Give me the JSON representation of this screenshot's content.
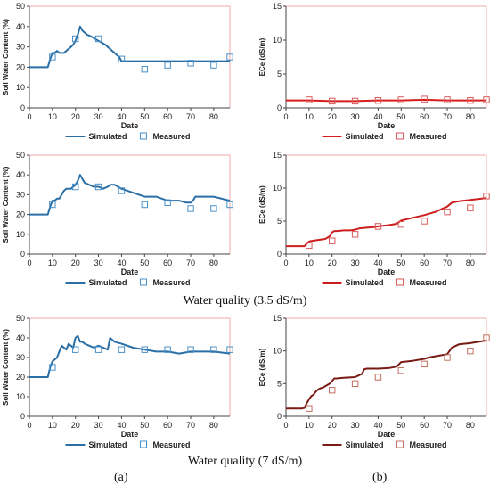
{
  "captions": {
    "row2": "Water quality (3.5 dS/m)",
    "row3": "Water quality (7 dS/m)",
    "panel_a": "(a)",
    "panel_b": "(b)"
  },
  "chart_data": [
    {
      "type": "line",
      "xlabel": "Date",
      "ylabel": "Soil Water Content (%)",
      "xlim": [
        0,
        87
      ],
      "ylim": [
        0,
        50
      ],
      "xticks": [
        "0",
        "10",
        "20",
        "30",
        "40",
        "50",
        "60",
        "70",
        "80"
      ],
      "yticks": [
        "0",
        "10",
        "20",
        "30",
        "40",
        "50"
      ],
      "grid": false,
      "legend": "bottom",
      "series": [
        {
          "name": "Simulated",
          "kind": "line",
          "color": "#2a6fa6",
          "x": [
            0,
            8,
            9,
            10,
            11,
            12,
            13,
            15,
            16,
            17,
            18,
            19,
            20,
            21,
            22,
            23,
            24,
            25,
            27,
            30,
            33,
            36,
            38,
            39,
            40,
            50,
            60,
            70,
            80,
            87
          ],
          "y": [
            20,
            20,
            24,
            27,
            27,
            28,
            27,
            27,
            28,
            29,
            30,
            31,
            33,
            36,
            40,
            38,
            37,
            36,
            35,
            33,
            31,
            28,
            26,
            25,
            23,
            23,
            23,
            23,
            23,
            23
          ]
        },
        {
          "name": "Measured",
          "kind": "marker",
          "color": "#4a90c8",
          "x": [
            10,
            20,
            30,
            40,
            50,
            60,
            70,
            80,
            87
          ],
          "y": [
            25,
            34,
            34,
            24,
            19,
            21,
            22,
            21,
            25
          ]
        }
      ]
    },
    {
      "type": "line",
      "xlabel": "Date",
      "ylabel": "ECe (dS/m)",
      "xlim": [
        0,
        87
      ],
      "ylim": [
        0,
        15
      ],
      "xticks": [
        "0",
        "10",
        "20",
        "30",
        "40",
        "50",
        "60",
        "70",
        "80"
      ],
      "yticks": [
        "0",
        "5",
        "10",
        "15"
      ],
      "grid": false,
      "legend": "bottom",
      "series": [
        {
          "name": "Simulated",
          "kind": "line",
          "color": "#d81e1e",
          "x": [
            0,
            10,
            20,
            30,
            40,
            50,
            60,
            70,
            80,
            87
          ],
          "y": [
            1.1,
            1.1,
            1.0,
            1.0,
            1.1,
            1.1,
            1.2,
            1.1,
            1.1,
            1.1
          ]
        },
        {
          "name": "Measured",
          "kind": "marker",
          "color": "#d85a5a",
          "x": [
            10,
            20,
            30,
            40,
            50,
            60,
            70,
            80,
            87
          ],
          "y": [
            1.2,
            1.0,
            1.0,
            1.1,
            1.2,
            1.3,
            1.2,
            1.1,
            1.2
          ]
        }
      ]
    },
    {
      "type": "line",
      "xlabel": "Date",
      "ylabel": "Soil Water Content (%)",
      "xlim": [
        0,
        87
      ],
      "ylim": [
        0,
        50
      ],
      "xticks": [
        "0",
        "10",
        "20",
        "30",
        "40",
        "50",
        "60",
        "70",
        "80"
      ],
      "yticks": [
        "0",
        "10",
        "20",
        "30",
        "40",
        "50"
      ],
      "grid": false,
      "legend": "bottom",
      "series": [
        {
          "name": "Simulated",
          "kind": "line",
          "color": "#2a6fa6",
          "x": [
            0,
            8,
            9,
            10,
            11,
            12,
            13,
            15,
            16,
            18,
            19,
            20,
            21,
            22,
            23,
            24,
            26,
            28,
            30,
            32,
            34,
            35,
            37,
            40,
            45,
            50,
            55,
            60,
            65,
            68,
            70,
            71,
            72,
            80,
            87
          ],
          "y": [
            20,
            20,
            24,
            27,
            27,
            28,
            28,
            32,
            33,
            33,
            34,
            35,
            37,
            40,
            38,
            36,
            35,
            34,
            34,
            33,
            34,
            35,
            35,
            33,
            31,
            29,
            29,
            27,
            27,
            26,
            26,
            27,
            29,
            29,
            27
          ]
        },
        {
          "name": "Measured",
          "kind": "marker",
          "color": "#4a90c8",
          "x": [
            10,
            20,
            30,
            40,
            50,
            60,
            70,
            80,
            87
          ],
          "y": [
            25,
            34,
            34,
            32,
            25,
            26,
            23,
            23,
            25
          ]
        }
      ]
    },
    {
      "type": "line",
      "xlabel": "Date",
      "ylabel": "ECe (dS/m)",
      "xlim": [
        0,
        87
      ],
      "ylim": [
        0,
        15
      ],
      "xticks": [
        "0",
        "10",
        "20",
        "30",
        "40",
        "50",
        "60",
        "70",
        "80"
      ],
      "yticks": [
        "0",
        "5",
        "10",
        "15"
      ],
      "grid": false,
      "legend": "bottom",
      "series": [
        {
          "name": "Simulated",
          "kind": "line",
          "color": "#cc1e1e",
          "x": [
            0,
            8,
            9,
            10,
            11,
            13,
            15,
            17,
            18,
            19,
            20,
            21,
            22,
            25,
            28,
            30,
            32,
            35,
            38,
            40,
            45,
            48,
            50,
            55,
            60,
            65,
            68,
            70,
            72,
            75,
            80,
            87
          ],
          "y": [
            1.2,
            1.2,
            1.6,
            1.9,
            2.0,
            2.1,
            2.2,
            2.3,
            2.5,
            2.7,
            3.3,
            3.5,
            3.5,
            3.6,
            3.6,
            3.7,
            3.9,
            4.0,
            4.1,
            4.2,
            4.4,
            4.6,
            5.1,
            5.5,
            5.9,
            6.4,
            6.9,
            7.2,
            7.8,
            8.0,
            8.2,
            8.5
          ]
        },
        {
          "name": "Measured",
          "kind": "marker",
          "color": "#d85a5a",
          "x": [
            10,
            20,
            30,
            40,
            50,
            60,
            70,
            80,
            87
          ],
          "y": [
            1.3,
            2.0,
            3.0,
            4.2,
            4.5,
            5.0,
            6.4,
            7.0,
            8.8
          ]
        }
      ]
    },
    {
      "type": "line",
      "xlabel": "Date",
      "ylabel": "Soil Water Content (%)",
      "xlim": [
        0,
        87
      ],
      "ylim": [
        0,
        50
      ],
      "xticks": [
        "0",
        "10",
        "20",
        "30",
        "40",
        "50",
        "60",
        "70",
        "80"
      ],
      "yticks": [
        "0",
        "10",
        "20",
        "30",
        "40",
        "50"
      ],
      "grid": false,
      "legend": "bottom",
      "series": [
        {
          "name": "Simulated",
          "kind": "line",
          "color": "#2a6fa6",
          "x": [
            0,
            8,
            9,
            10,
            11,
            12,
            13,
            14,
            15,
            16,
            17,
            18,
            19,
            20,
            21,
            22,
            23,
            24,
            26,
            28,
            30,
            32,
            34,
            35,
            37,
            40,
            45,
            50,
            55,
            60,
            65,
            70,
            80,
            87
          ],
          "y": [
            20,
            20,
            25,
            28,
            29,
            30,
            33,
            36,
            35,
            34,
            37,
            36,
            35,
            40,
            41,
            38,
            38,
            37,
            36,
            35,
            36,
            35,
            34,
            40,
            38,
            37,
            35,
            34,
            33,
            33,
            32,
            33,
            33,
            32
          ]
        },
        {
          "name": "Measured",
          "kind": "marker",
          "color": "#4a90c8",
          "x": [
            10,
            20,
            30,
            40,
            50,
            60,
            70,
            80,
            87
          ],
          "y": [
            25,
            34,
            34,
            34,
            34,
            34,
            34,
            34,
            34
          ]
        }
      ]
    },
    {
      "type": "line",
      "xlabel": "Date",
      "ylabel": "ECe (dS/m)",
      "xlim": [
        0,
        87
      ],
      "ylim": [
        0,
        15
      ],
      "xticks": [
        "0",
        "10",
        "20",
        "30",
        "40",
        "50",
        "60",
        "70",
        "80"
      ],
      "yticks": [
        "0",
        "5",
        "10",
        "15"
      ],
      "grid": false,
      "legend": "bottom",
      "series": [
        {
          "name": "Simulated",
          "kind": "line",
          "color": "#7a1a14",
          "x": [
            0,
            7,
            8,
            9,
            10,
            11,
            12,
            13,
            14,
            15,
            16,
            17,
            18,
            19,
            20,
            21,
            22,
            25,
            30,
            33,
            34,
            35,
            40,
            45,
            48,
            50,
            55,
            60,
            62,
            65,
            70,
            72,
            75,
            80,
            87
          ],
          "y": [
            1.2,
            1.2,
            1.3,
            2.0,
            2.6,
            3.1,
            3.3,
            3.8,
            4.1,
            4.3,
            4.4,
            4.6,
            4.8,
            5.0,
            5.4,
            5.8,
            5.8,
            5.9,
            6.0,
            6.5,
            7.2,
            7.3,
            7.3,
            7.4,
            7.6,
            8.3,
            8.5,
            8.8,
            9.0,
            9.2,
            9.5,
            10.5,
            11.0,
            11.2,
            11.6
          ]
        },
        {
          "name": "Measured",
          "kind": "marker",
          "color": "#c07060",
          "x": [
            10,
            20,
            30,
            40,
            50,
            60,
            70,
            80,
            87
          ],
          "y": [
            1.2,
            4.0,
            5.0,
            6.0,
            7.0,
            8.0,
            9.0,
            10.0,
            12.0
          ]
        }
      ]
    }
  ]
}
